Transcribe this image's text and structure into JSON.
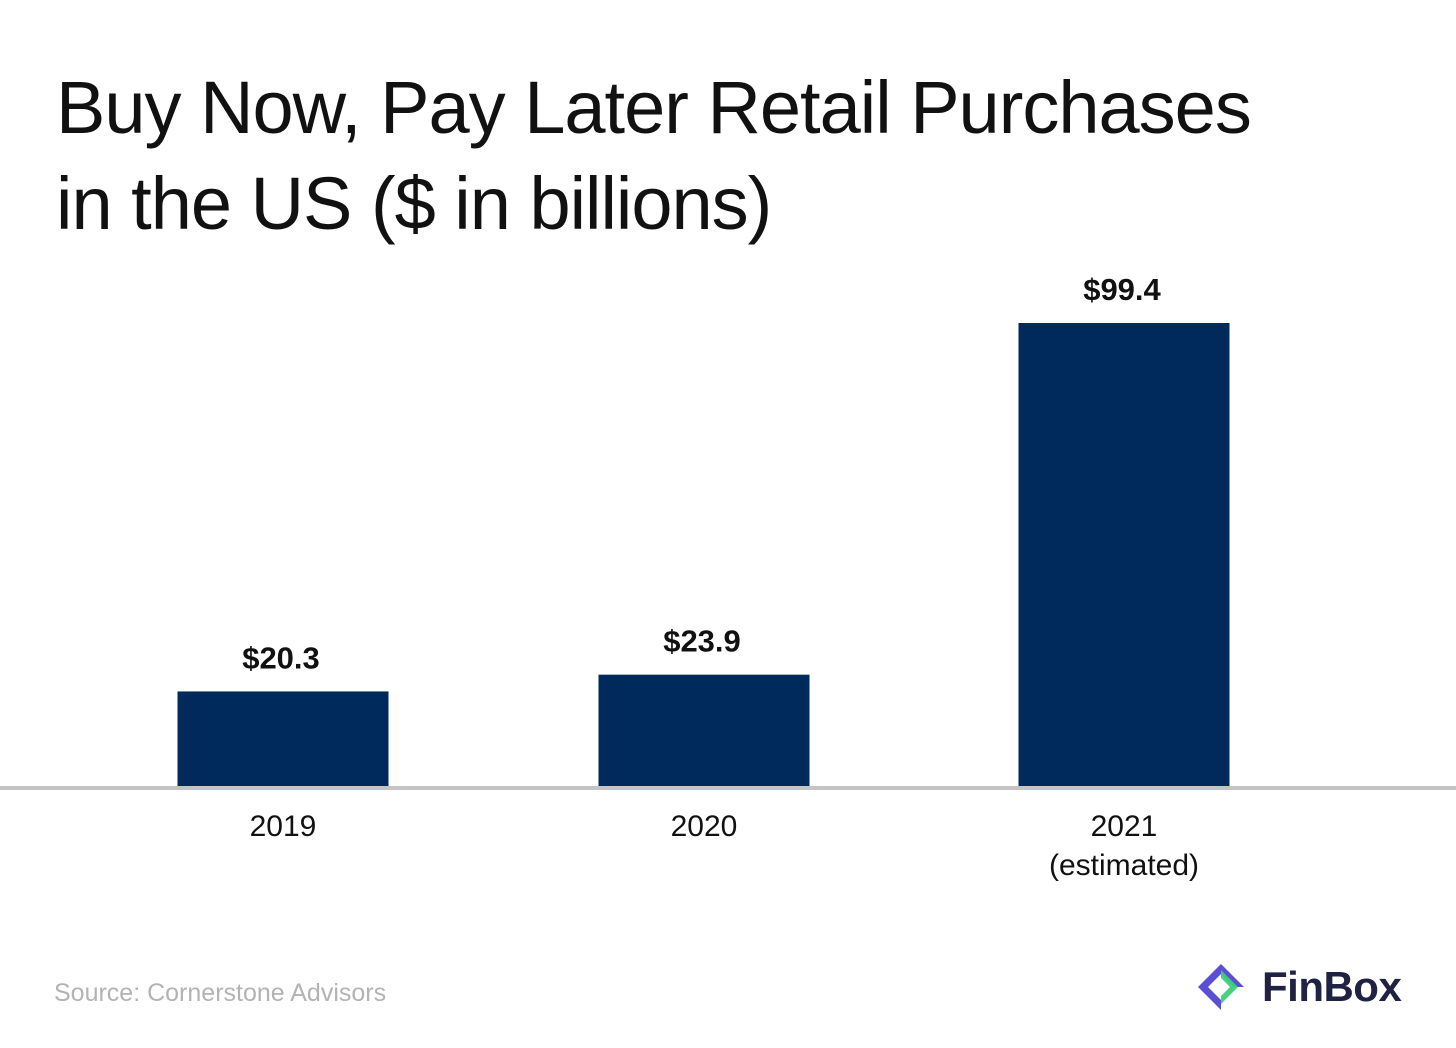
{
  "colors": {
    "bar": "#002a5c",
    "baseline": "#c4c4c4",
    "source_text": "#b3b3b3",
    "brand_text": "#1f2240",
    "logo_purple": "#5b4fd6",
    "logo_green": "#3ccf7c"
  },
  "brand": {
    "name": "FinBox",
    "logo_icon": "finbox-logo-icon"
  },
  "source": "Source: Cornerstone Advisors",
  "chart_data": {
    "type": "bar",
    "title_lines": [
      "Buy Now, Pay Later Retail Purchases",
      "in the US ($ in billions)"
    ],
    "categories": [
      [
        "2019"
      ],
      [
        "2020"
      ],
      [
        "2021",
        "(estimated)"
      ]
    ],
    "values": [
      20.3,
      23.9,
      99.4
    ],
    "value_labels": [
      "$20.3",
      "$23.9",
      "$99.4"
    ],
    "xlabel": "",
    "ylabel": "",
    "ylim": [
      0,
      100
    ],
    "grid": false,
    "legend": "none"
  }
}
